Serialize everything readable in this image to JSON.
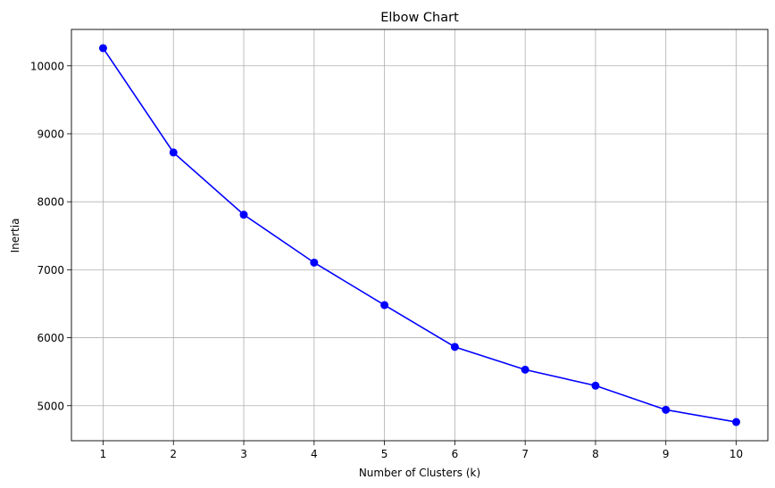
{
  "chart_data": {
    "type": "line",
    "title": "Elbow Chart",
    "xlabel": "Number of Clusters (k)",
    "ylabel": "Inertia",
    "x": [
      1,
      2,
      3,
      4,
      5,
      6,
      7,
      8,
      9,
      10
    ],
    "series": [
      {
        "values": [
          10260,
          8725,
          7810,
          7105,
          6480,
          5865,
          5530,
          5295,
          4940,
          4760
        ],
        "color": "#0000ff",
        "marker": "circle"
      }
    ],
    "xticks": [
      "1",
      "2",
      "3",
      "4",
      "5",
      "6",
      "7",
      "8",
      "9",
      "10"
    ],
    "yticks": [
      "5000",
      "6000",
      "7000",
      "8000",
      "9000",
      "10000"
    ],
    "ytick_values": [
      5000,
      6000,
      7000,
      8000,
      9000,
      10000
    ],
    "xlim": [
      0.55,
      10.45
    ],
    "ylim": [
      4485,
      10535
    ],
    "grid": true
  }
}
